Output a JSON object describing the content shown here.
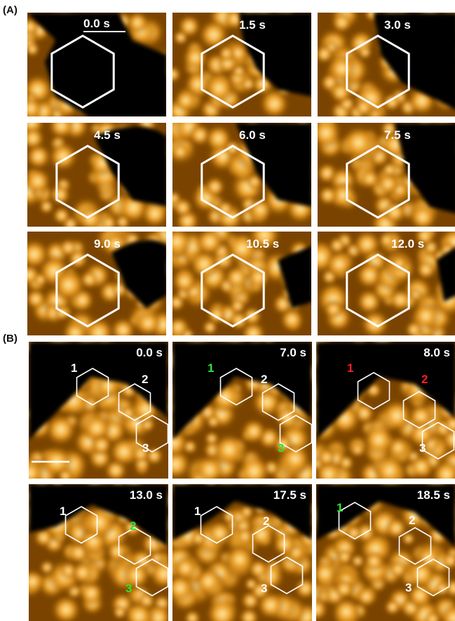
{
  "panel_labels": {
    "a": "(A)",
    "b": "(B)"
  },
  "panel_a": {
    "times": [
      "0.0 s",
      "1.5 s",
      "3.0 s",
      "4.5 s",
      "6.0 s",
      "7.5 s",
      "9.0 s",
      "10.5 s",
      "12.0 s"
    ]
  },
  "panel_b": {
    "times": [
      "0.0 s",
      "7.0 s",
      "8.0 s",
      "13.0 s",
      "17.5 s",
      "18.5 s"
    ],
    "frames": [
      {
        "labels": [
          "1",
          "2",
          "3"
        ],
        "colors": [
          "#ffffff",
          "#ffffff",
          "#ffffff"
        ]
      },
      {
        "labels": [
          "1",
          "2",
          "3"
        ],
        "colors": [
          "#2ee62e",
          "#ffffff",
          "#2ee62e"
        ]
      },
      {
        "labels": [
          "1",
          "2",
          "3"
        ],
        "colors": [
          "#ff2020",
          "#ff2020",
          "#ffffff"
        ]
      },
      {
        "labels": [
          "1",
          "2",
          "3"
        ],
        "colors": [
          "#ffffff",
          "#2ee62e",
          "#2ee62e"
        ]
      },
      {
        "labels": [
          "1",
          "2",
          "3"
        ],
        "colors": [
          "#ffffff",
          "#ffffff",
          "#ffffff"
        ]
      },
      {
        "labels": [
          "1",
          "2",
          "3"
        ],
        "colors": [
          "#2ee62e",
          "#ffffff",
          "#ffffff"
        ]
      }
    ]
  },
  "colors": {
    "bright": "#fff0b0",
    "mid": "#f0a020",
    "dark": "#7a4400",
    "void": "#050200"
  }
}
